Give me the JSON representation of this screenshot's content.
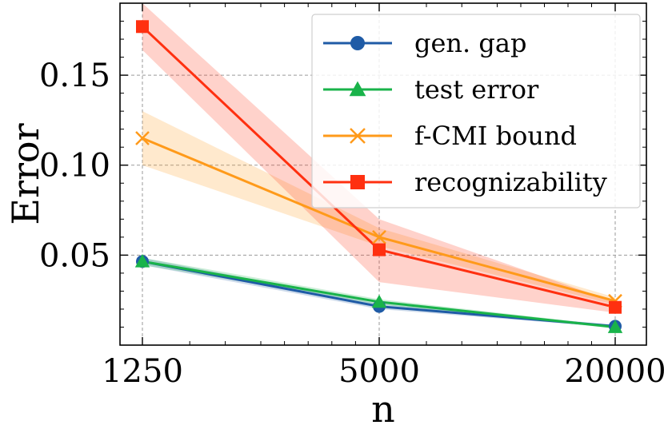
{
  "chart_data": {
    "type": "line",
    "xlabel": "n",
    "ylabel": "Error",
    "categories": [
      "1250",
      "5000",
      "20000"
    ],
    "x_scale": "log",
    "ylim": [
      0.0,
      0.19
    ],
    "y_ticks": [
      0.05,
      0.1,
      0.15
    ],
    "y_tick_labels": [
      "0.05",
      "0.10",
      "0.15"
    ],
    "grid": true,
    "legend_position": "top-right",
    "series": [
      {
        "name": "gen. gap",
        "color": "#1f5ba6",
        "marker": "circle",
        "values": [
          0.0465,
          0.0215,
          0.0105
        ],
        "band": [
          [
            0.0445,
            0.0485
          ],
          [
            0.02,
            0.023
          ],
          [
            0.0098,
            0.0112
          ]
        ]
      },
      {
        "name": "test error",
        "color": "#19b34a",
        "marker": "triangle",
        "values": [
          0.0465,
          0.024,
          0.01
        ],
        "band": [
          [
            0.0445,
            0.0485
          ],
          [
            0.0225,
            0.0255
          ],
          [
            0.0093,
            0.0107
          ]
        ]
      },
      {
        "name": "f-CMI bound",
        "color": "#ff9a1a",
        "marker": "x",
        "values": [
          0.115,
          0.06,
          0.0245
        ],
        "band": [
          [
            0.1,
            0.13
          ],
          [
            0.055,
            0.065
          ],
          [
            0.0225,
            0.0265
          ]
        ]
      },
      {
        "name": "recognizability",
        "color": "#ff3010",
        "marker": "square",
        "values": [
          0.177,
          0.053,
          0.021
        ],
        "band": [
          [
            0.164,
            0.19
          ],
          [
            0.035,
            0.07
          ],
          [
            0.018,
            0.024
          ]
        ]
      }
    ]
  }
}
